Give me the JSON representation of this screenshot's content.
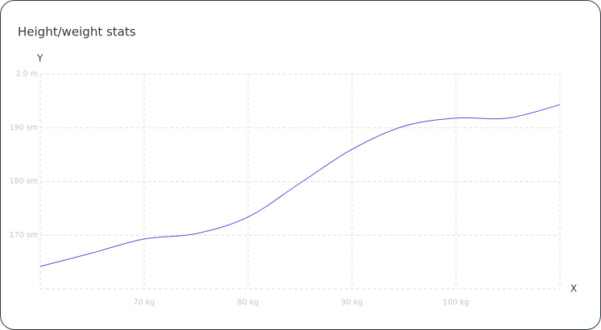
{
  "chart_data": {
    "type": "line",
    "title": "Height/weight stats",
    "x_label": "X",
    "y_label": "Y",
    "x": [
      60,
      65,
      70,
      75,
      80,
      85,
      90,
      95,
      100,
      105,
      110
    ],
    "series": [
      {
        "color": "#5b4fd6",
        "values": [
          164.2,
          166.7,
          169.3,
          170.3,
          173.4,
          179.7,
          186,
          190.3,
          191.8,
          191.8,
          194.3
        ]
      }
    ],
    "xlim": [
      60,
      110
    ],
    "xticks": [
      {
        "value": 70,
        "label": "70 kg"
      },
      {
        "value": 80,
        "label": "80 kg"
      },
      {
        "value": 90,
        "label": "90 kg"
      },
      {
        "value": 100,
        "label": "100 kg"
      }
    ],
    "ylim": [
      160,
      200
    ],
    "yticks": [
      {
        "value": 170,
        "label": "170 sm"
      },
      {
        "value": 180,
        "label": "180 sm"
      },
      {
        "value": 190,
        "label": "190 sm"
      },
      {
        "value": 200,
        "label": "2.0 m"
      }
    ],
    "grid": true
  }
}
